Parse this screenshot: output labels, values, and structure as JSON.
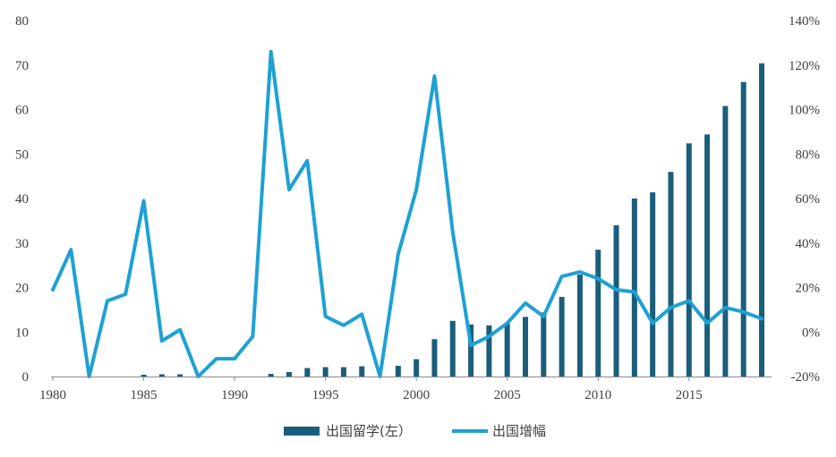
{
  "chart_data": {
    "type": "bar",
    "x": [
      1980,
      1981,
      1982,
      1983,
      1984,
      1985,
      1986,
      1987,
      1988,
      1989,
      1990,
      1991,
      1992,
      1993,
      1994,
      1995,
      1996,
      1997,
      1998,
      1999,
      2000,
      2001,
      2002,
      2003,
      2004,
      2005,
      2006,
      2007,
      2008,
      2009,
      2010,
      2011,
      2012,
      2013,
      2014,
      2015,
      2016,
      2017,
      2018,
      2019
    ],
    "series": [
      {
        "name": "出国留学(左）",
        "type": "bar",
        "axis": "left",
        "color": "#1b5e7b",
        "values": [
          0,
          0,
          0,
          0,
          0,
          0.4,
          0.5,
          0.5,
          0,
          0,
          0,
          0,
          0.6,
          1.0,
          1.9,
          2.1,
          2.1,
          2.3,
          0,
          2.4,
          3.9,
          8.4,
          12.5,
          11.7,
          11.5,
          11.9,
          13.4,
          14.4,
          17.9,
          22.9,
          28.5,
          34.0,
          40.0,
          41.4,
          46.0,
          52.4,
          54.4,
          60.8,
          66.2,
          70.4
        ]
      },
      {
        "name": "出国增幅",
        "type": "line",
        "axis": "right",
        "color": "#1ea1d4",
        "values": [
          19,
          37,
          -20,
          14,
          17,
          59,
          -4,
          1,
          -20,
          -12,
          -12,
          -2,
          126,
          64,
          77,
          7,
          3,
          8,
          -20,
          35,
          64,
          115,
          45,
          -6,
          -2,
          4,
          13,
          7,
          25,
          27,
          24,
          19,
          18,
          4,
          11,
          14,
          4,
          11,
          9,
          6
        ]
      }
    ],
    "y_left": {
      "min": 0,
      "max": 80,
      "ticks": [
        "0",
        "10",
        "20",
        "30",
        "40",
        "50",
        "60",
        "70",
        "80"
      ]
    },
    "y_right": {
      "min": -20,
      "max": 140,
      "ticks": [
        "-20%",
        "0%",
        "20%",
        "40%",
        "60%",
        "80%",
        "100%",
        "120%",
        "140%"
      ]
    },
    "x_ticks": [
      "1980",
      "1985",
      "1990",
      "1995",
      "2000",
      "2005",
      "2010",
      "2015"
    ],
    "legend_position": "bottom-center",
    "grid": false
  }
}
